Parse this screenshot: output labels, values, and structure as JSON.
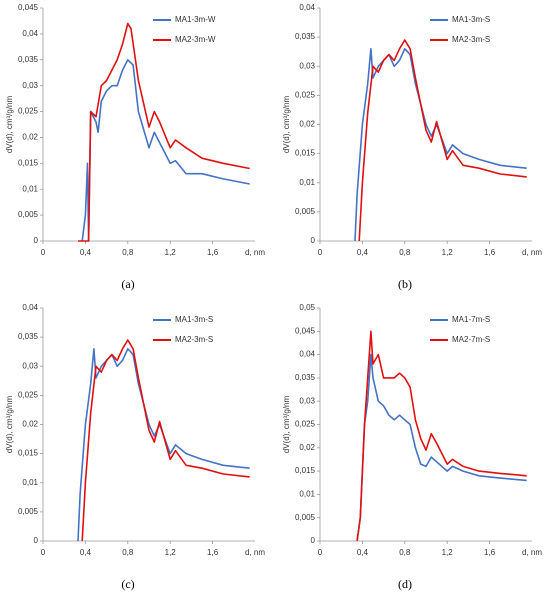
{
  "chart_data": [
    {
      "type": "line",
      "caption": "(a)",
      "y_label": "dV(d), cm³/g/nm",
      "x_label": "d, nm",
      "xlim": [
        0,
        2
      ],
      "xticks": [
        0,
        {
          "value": 0.4,
          "label": "0,4"
        },
        {
          "value": 0.8,
          "label": "0,8"
        },
        {
          "value": 1.2,
          "label": "1,2"
        },
        {
          "value": 1.6,
          "label": "1,6"
        }
      ],
      "ylim": [
        0,
        0.045
      ],
      "yticks": [
        0,
        {
          "value": 0.005,
          "label": "0,005"
        },
        {
          "value": 0.01,
          "label": "0,01"
        },
        {
          "value": 0.015,
          "label": "0,015"
        },
        {
          "value": 0.02,
          "label": "0,02"
        },
        {
          "value": 0.025,
          "label": "0,025"
        },
        {
          "value": 0.03,
          "label": "0,03"
        },
        {
          "value": 0.035,
          "label": "0,035"
        },
        {
          "value": 0.04,
          "label": "0,04"
        },
        {
          "value": 0.045,
          "label": "0,045"
        }
      ],
      "series": [
        {
          "name": "MA1-3m-W",
          "color": "#4472c4",
          "x": [
            0.37,
            0.4,
            0.42,
            0.43,
            0.45,
            0.5,
            0.52,
            0.55,
            0.6,
            0.65,
            0.7,
            0.75,
            0.8,
            0.85,
            0.9,
            1.0,
            1.05,
            1.1,
            1.2,
            1.25,
            1.35,
            1.5,
            1.7,
            1.95
          ],
          "values": [
            0,
            0.005,
            0.015,
            0,
            0.025,
            0.023,
            0.021,
            0.027,
            0.029,
            0.03,
            0.03,
            0.033,
            0.035,
            0.034,
            0.025,
            0.018,
            0.021,
            0.019,
            0.015,
            0.0155,
            0.013,
            0.013,
            0.012,
            0.011
          ]
        },
        {
          "name": "MA2-3m-W",
          "color": "#e01010",
          "x": [
            0.33,
            0.43,
            0.45,
            0.5,
            0.55,
            0.6,
            0.65,
            0.7,
            0.75,
            0.8,
            0.83,
            0.9,
            1.0,
            1.05,
            1.1,
            1.2,
            1.25,
            1.35,
            1.5,
            1.7,
            1.95
          ],
          "values": [
            0,
            0,
            0.025,
            0.024,
            0.03,
            0.031,
            0.033,
            0.035,
            0.038,
            0.042,
            0.041,
            0.031,
            0.022,
            0.025,
            0.023,
            0.018,
            0.0195,
            0.018,
            0.016,
            0.015,
            0.014
          ]
        }
      ]
    },
    {
      "type": "line",
      "caption": "(b)",
      "y_label": "dV(d), cm³/g/nm",
      "x_label": "d, nm",
      "xlim": [
        0,
        2
      ],
      "xticks": [
        0,
        {
          "value": 0.4,
          "label": "0,4"
        },
        {
          "value": 0.8,
          "label": "0,8"
        },
        {
          "value": 1.2,
          "label": "1,2"
        },
        {
          "value": 1.6,
          "label": "1,6"
        }
      ],
      "ylim": [
        0,
        0.04
      ],
      "yticks": [
        0,
        {
          "value": 0.005,
          "label": "0,005"
        },
        {
          "value": 0.01,
          "label": "0,01"
        },
        {
          "value": 0.015,
          "label": "0,015"
        },
        {
          "value": 0.02,
          "label": "0,02"
        },
        {
          "value": 0.025,
          "label": "0,025"
        },
        {
          "value": 0.03,
          "label": "0,03"
        },
        {
          "value": 0.035,
          "label": "0,035"
        },
        {
          "value": 0.04,
          "label": "0,04"
        }
      ],
      "series": [
        {
          "name": "MA1-3m-S",
          "color": "#4472c4",
          "x": [
            0.33,
            0.35,
            0.4,
            0.45,
            0.48,
            0.5,
            0.55,
            0.6,
            0.65,
            0.7,
            0.75,
            0.8,
            0.85,
            0.9,
            1.0,
            1.05,
            1.1,
            1.2,
            1.25,
            1.35,
            1.5,
            1.7,
            1.95
          ],
          "values": [
            0,
            0.008,
            0.02,
            0.027,
            0.033,
            0.028,
            0.03,
            0.031,
            0.032,
            0.03,
            0.031,
            0.033,
            0.032,
            0.027,
            0.02,
            0.018,
            0.02,
            0.015,
            0.0165,
            0.015,
            0.014,
            0.013,
            0.0125
          ]
        },
        {
          "name": "MA2-3m-S",
          "color": "#e01010",
          "x": [
            0.37,
            0.4,
            0.45,
            0.5,
            0.55,
            0.6,
            0.65,
            0.7,
            0.75,
            0.8,
            0.85,
            0.9,
            1.0,
            1.05,
            1.1,
            1.2,
            1.25,
            1.35,
            1.5,
            1.7,
            1.95
          ],
          "values": [
            0,
            0.01,
            0.022,
            0.03,
            0.029,
            0.031,
            0.032,
            0.031,
            0.033,
            0.0345,
            0.033,
            0.028,
            0.019,
            0.017,
            0.0205,
            0.014,
            0.0155,
            0.013,
            0.0125,
            0.0115,
            0.011
          ]
        }
      ]
    },
    {
      "type": "line",
      "caption": "(c)",
      "y_label": "dV(d), cm³/g/nm",
      "x_label": "d, nm",
      "xlim": [
        0,
        2
      ],
      "xticks": [
        0,
        {
          "value": 0.4,
          "label": "0,4"
        },
        {
          "value": 0.8,
          "label": "0,8"
        },
        {
          "value": 1.2,
          "label": "1,2"
        },
        {
          "value": 1.6,
          "label": "1,6"
        }
      ],
      "ylim": [
        0,
        0.04
      ],
      "yticks": [
        0,
        {
          "value": 0.005,
          "label": "0,005"
        },
        {
          "value": 0.01,
          "label": "0,01"
        },
        {
          "value": 0.015,
          "label": "0,015"
        },
        {
          "value": 0.02,
          "label": "0,02"
        },
        {
          "value": 0.025,
          "label": "0,025"
        },
        {
          "value": 0.03,
          "label": "0,03"
        },
        {
          "value": 0.035,
          "label": "0,035"
        },
        {
          "value": 0.04,
          "label": "0,04"
        }
      ],
      "series": [
        {
          "name": "MA1-3m-S",
          "color": "#4472c4",
          "x": [
            0.33,
            0.35,
            0.4,
            0.45,
            0.48,
            0.5,
            0.55,
            0.6,
            0.65,
            0.7,
            0.75,
            0.8,
            0.85,
            0.9,
            1.0,
            1.05,
            1.1,
            1.2,
            1.25,
            1.35,
            1.5,
            1.7,
            1.95
          ],
          "values": [
            0,
            0.008,
            0.02,
            0.027,
            0.033,
            0.028,
            0.03,
            0.031,
            0.032,
            0.03,
            0.031,
            0.033,
            0.032,
            0.027,
            0.02,
            0.018,
            0.02,
            0.015,
            0.0165,
            0.015,
            0.014,
            0.013,
            0.0125
          ]
        },
        {
          "name": "MA2-3m-S",
          "color": "#e01010",
          "x": [
            0.37,
            0.4,
            0.45,
            0.5,
            0.55,
            0.6,
            0.65,
            0.7,
            0.75,
            0.8,
            0.85,
            0.9,
            1.0,
            1.05,
            1.1,
            1.2,
            1.25,
            1.35,
            1.5,
            1.7,
            1.95
          ],
          "values": [
            0,
            0.01,
            0.022,
            0.03,
            0.029,
            0.031,
            0.032,
            0.031,
            0.033,
            0.0345,
            0.033,
            0.028,
            0.019,
            0.017,
            0.0205,
            0.014,
            0.0155,
            0.013,
            0.0125,
            0.0115,
            0.011
          ]
        }
      ]
    },
    {
      "type": "line",
      "caption": "(d)",
      "y_label": "dV(d), cm³/g/nm",
      "x_label": "d, nm",
      "xlim": [
        0,
        2
      ],
      "xticks": [
        0,
        {
          "value": 0.4,
          "label": "0,4"
        },
        {
          "value": 0.8,
          "label": "0,8"
        },
        {
          "value": 1.2,
          "label": "1,2"
        },
        {
          "value": 1.6,
          "label": "1,6"
        }
      ],
      "ylim": [
        0,
        0.05
      ],
      "yticks": [
        0,
        {
          "value": 0.005,
          "label": "0,005"
        },
        {
          "value": 0.01,
          "label": "0,01"
        },
        {
          "value": 0.015,
          "label": "0,015"
        },
        {
          "value": 0.02,
          "label": "0,02"
        },
        {
          "value": 0.025,
          "label": "0,025"
        },
        {
          "value": 0.03,
          "label": "0,03"
        },
        {
          "value": 0.035,
          "label": "0,035"
        },
        {
          "value": 0.04,
          "label": "0,04"
        },
        {
          "value": 0.045,
          "label": "0,045"
        },
        {
          "value": 0.05,
          "label": "0,05"
        }
      ],
      "series": [
        {
          "name": "MA1-7m-S",
          "color": "#4472c4",
          "x": [
            0.35,
            0.38,
            0.42,
            0.45,
            0.48,
            0.5,
            0.55,
            0.6,
            0.65,
            0.7,
            0.75,
            0.8,
            0.85,
            0.9,
            0.95,
            1.0,
            1.05,
            1.1,
            1.2,
            1.25,
            1.35,
            1.5,
            1.7,
            1.95
          ],
          "values": [
            0,
            0.005,
            0.025,
            0.03,
            0.04,
            0.035,
            0.03,
            0.029,
            0.027,
            0.026,
            0.027,
            0.026,
            0.025,
            0.02,
            0.0165,
            0.016,
            0.018,
            0.017,
            0.015,
            0.016,
            0.015,
            0.014,
            0.0135,
            0.013
          ]
        },
        {
          "name": "MA2-7m-S",
          "color": "#e01010",
          "x": [
            0.35,
            0.38,
            0.42,
            0.45,
            0.48,
            0.5,
            0.55,
            0.6,
            0.65,
            0.7,
            0.75,
            0.8,
            0.85,
            0.9,
            0.95,
            1.0,
            1.05,
            1.1,
            1.2,
            1.25,
            1.35,
            1.5,
            1.7,
            1.95
          ],
          "values": [
            0,
            0.005,
            0.025,
            0.035,
            0.045,
            0.038,
            0.04,
            0.035,
            0.035,
            0.035,
            0.036,
            0.035,
            0.033,
            0.026,
            0.022,
            0.0195,
            0.023,
            0.021,
            0.0165,
            0.0175,
            0.016,
            0.015,
            0.0145,
            0.014
          ]
        }
      ]
    }
  ]
}
